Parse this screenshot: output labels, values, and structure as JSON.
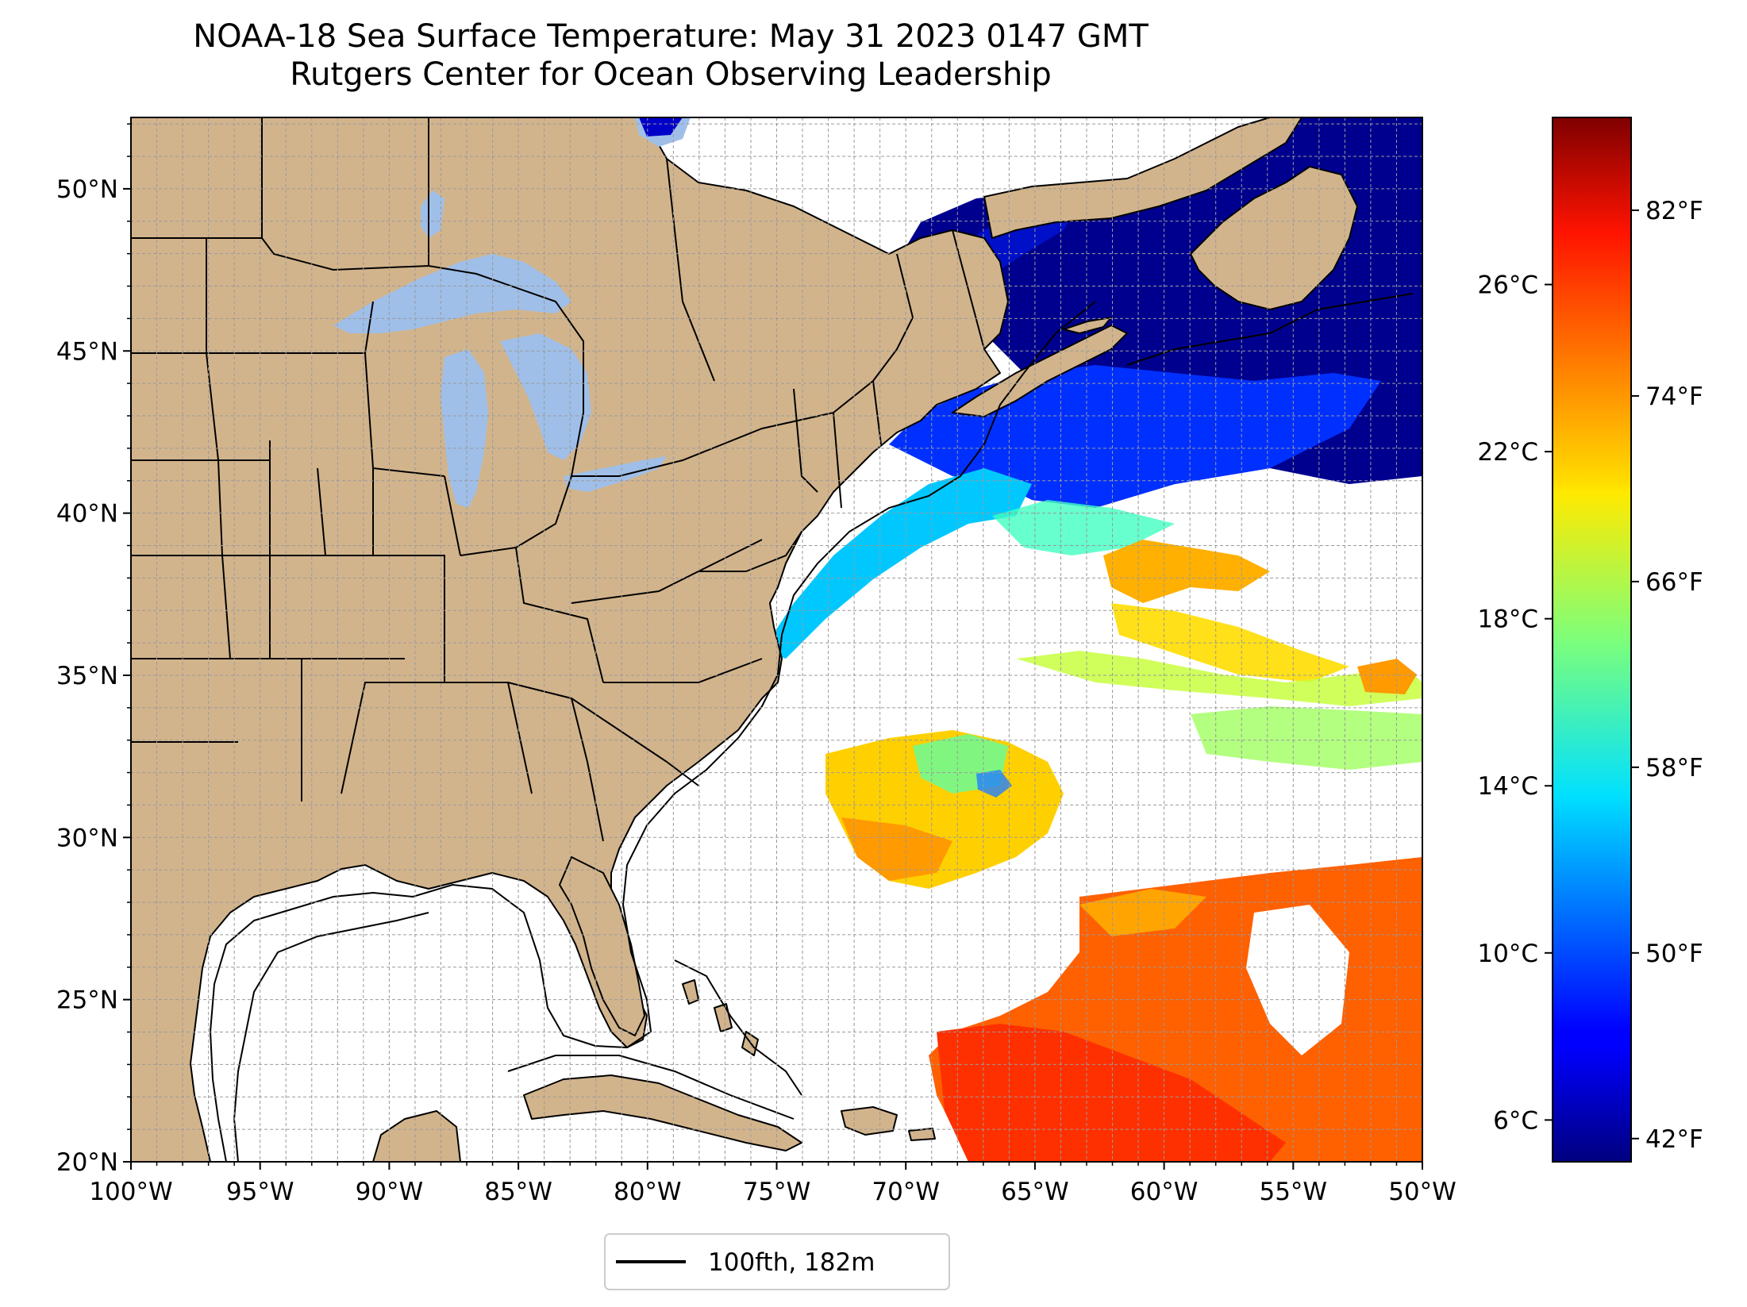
{
  "title": {
    "line1": "NOAA-18 Sea Surface Temperature: May 31 2023 0147 GMT",
    "line2": "Rutgers Center for Ocean Observing Leadership"
  },
  "chart_data": {
    "type": "heatmap",
    "description_units": "sea surface temperature",
    "lon_range": [
      -100,
      -50
    ],
    "lat_range": [
      20,
      52.2
    ],
    "x_ticks": [
      "100°W",
      "95°W",
      "90°W",
      "85°W",
      "80°W",
      "75°W",
      "70°W",
      "65°W",
      "60°W",
      "55°W",
      "50°W"
    ],
    "x_tick_values": [
      -100,
      -95,
      -90,
      -85,
      -80,
      -75,
      -70,
      -65,
      -60,
      -55,
      -50
    ],
    "y_ticks": [
      "20°N",
      "25°N",
      "30°N",
      "35°N",
      "40°N",
      "45°N",
      "50°N"
    ],
    "y_tick_values": [
      20,
      25,
      30,
      35,
      40,
      45,
      50
    ],
    "grid": true,
    "colorbar": {
      "range_c": [
        5.0,
        30.0
      ],
      "celsius_ticks": [
        "6°C",
        "10°C",
        "14°C",
        "18°C",
        "22°C",
        "26°C"
      ],
      "celsius_values": [
        6,
        10,
        14,
        18,
        22,
        26
      ],
      "fahrenheit_ticks": [
        "42°F",
        "50°F",
        "58°F",
        "66°F",
        "74°F",
        "82°F"
      ],
      "fahrenheit_values": [
        42,
        50,
        58,
        66,
        74,
        82
      ],
      "colormap": "jet"
    },
    "legend": {
      "placement": "bottom-center",
      "entries": [
        {
          "label": "100fth, 182m",
          "color": "#000000"
        }
      ]
    }
  },
  "colors": {
    "land": "#d2b48c",
    "lakes": "#9fbfe8",
    "no_data": "#ffffff",
    "grid": "#9a9a9a"
  }
}
